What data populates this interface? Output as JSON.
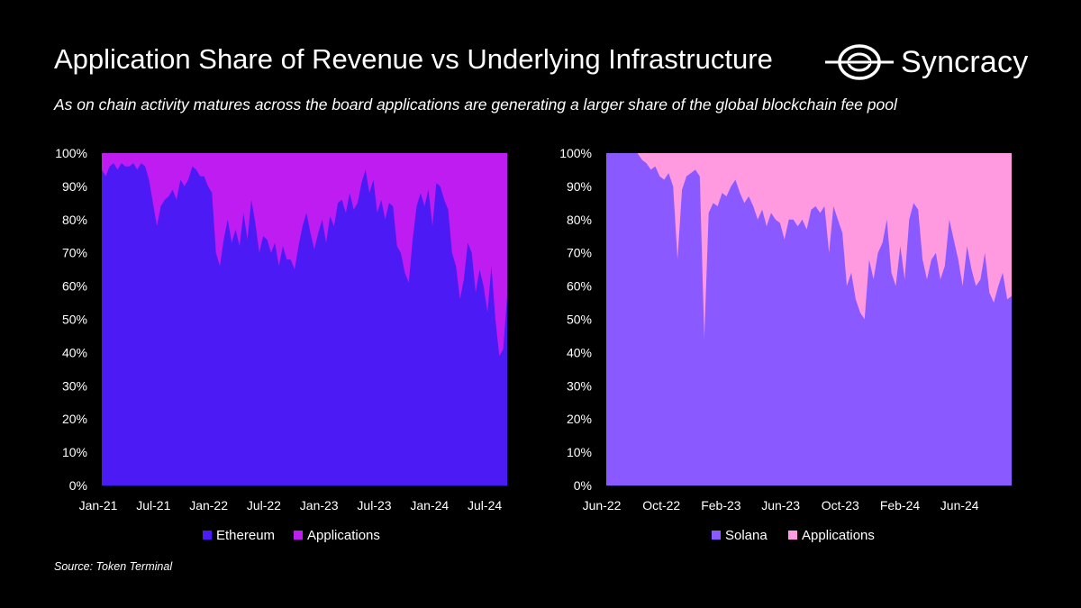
{
  "header": {
    "title": "Application Share of Revenue vs Underlying Infrastructure",
    "subtitle": "As on chain activity matures across the board applications are generating a larger share of the global blockchain fee pool",
    "brand": "Syncracy"
  },
  "footer": {
    "source": "Source: Token Terminal"
  },
  "chart_data": [
    {
      "type": "area",
      "stacked": true,
      "normalized": "percent",
      "yticks": [
        "0%",
        "10%",
        "20%",
        "30%",
        "40%",
        "50%",
        "60%",
        "70%",
        "80%",
        "90%",
        "100%"
      ],
      "ylim": [
        0,
        100
      ],
      "xticks": [
        "Jan-21",
        "Jul-21",
        "Jan-22",
        "Jul-22",
        "Jan-23",
        "Jul-23",
        "Jan-24",
        "Jul-24"
      ],
      "x_start": "2021-01",
      "x_end": "2024-10",
      "legend_position": "bottom",
      "series": [
        {
          "name": "Ethereum",
          "color": "#4c1af5",
          "values": [
            95,
            93,
            96,
            97,
            95,
            97,
            96,
            96,
            97,
            95,
            97,
            96,
            92,
            85,
            78,
            84,
            86,
            87,
            89,
            86,
            92,
            90,
            92,
            96,
            95,
            93,
            93,
            90,
            88,
            70,
            66,
            74,
            80,
            73,
            77,
            72,
            82,
            74,
            86,
            79,
            70,
            75,
            74,
            70,
            73,
            66,
            72,
            68,
            68,
            65,
            72,
            78,
            82,
            76,
            71,
            76,
            80,
            73,
            81,
            78,
            85,
            86,
            82,
            88,
            83,
            85,
            91,
            95,
            88,
            92,
            82,
            86,
            80,
            85,
            84,
            72,
            70,
            64,
            61,
            74,
            84,
            88,
            84,
            89,
            78,
            91,
            90,
            86,
            83,
            70,
            66,
            56,
            62,
            73,
            70,
            58,
            65,
            60,
            52,
            66,
            50,
            39,
            41,
            57
          ]
        },
        {
          "name": "Applications",
          "color": "#be1cf0",
          "values": [
            5,
            7,
            4,
            3,
            5,
            3,
            4,
            4,
            3,
            5,
            3,
            4,
            8,
            15,
            22,
            16,
            14,
            13,
            11,
            14,
            8,
            10,
            8,
            4,
            5,
            7,
            7,
            10,
            12,
            30,
            34,
            26,
            20,
            27,
            23,
            28,
            18,
            26,
            14,
            21,
            30,
            25,
            26,
            30,
            27,
            34,
            28,
            32,
            32,
            35,
            28,
            22,
            18,
            24,
            29,
            24,
            20,
            27,
            19,
            22,
            15,
            14,
            18,
            12,
            17,
            15,
            9,
            5,
            12,
            8,
            18,
            14,
            20,
            15,
            16,
            28,
            30,
            36,
            39,
            26,
            16,
            12,
            16,
            11,
            22,
            9,
            10,
            14,
            17,
            30,
            34,
            44,
            38,
            27,
            30,
            42,
            35,
            40,
            48,
            34,
            50,
            61,
            59,
            43
          ]
        }
      ]
    },
    {
      "type": "area",
      "stacked": true,
      "normalized": "percent",
      "yticks": [
        "0%",
        "10%",
        "20%",
        "30%",
        "40%",
        "50%",
        "60%",
        "70%",
        "80%",
        "90%",
        "100%"
      ],
      "ylim": [
        0,
        100
      ],
      "xticks": [
        "Jun-22",
        "Oct-22",
        "Feb-23",
        "Jun-23",
        "Oct-23",
        "Feb-24",
        "Jun-24"
      ],
      "x_start": "2022-06",
      "x_end": "2024-10",
      "legend_position": "bottom",
      "series": [
        {
          "name": "Solana",
          "color": "#8a59ff",
          "values": [
            100,
            100,
            100,
            100,
            100,
            100,
            100,
            100,
            98,
            97,
            95,
            96,
            93,
            92,
            94,
            90,
            68,
            89,
            93,
            94,
            95,
            93,
            44,
            82,
            85,
            84,
            88,
            87,
            90,
            92,
            88,
            85,
            87,
            84,
            80,
            83,
            78,
            82,
            80,
            79,
            74,
            80,
            80,
            78,
            80,
            77,
            83,
            84,
            82,
            84,
            70,
            84,
            80,
            76,
            60,
            64,
            56,
            52,
            50,
            68,
            62,
            70,
            73,
            80,
            64,
            60,
            72,
            62,
            80,
            85,
            83,
            68,
            62,
            68,
            70,
            62,
            66,
            80,
            74,
            68,
            60,
            72,
            65,
            60,
            62,
            70,
            58,
            55,
            60,
            64,
            56,
            57
          ]
        },
        {
          "name": "Applications",
          "color": "#ff99e0",
          "values": [
            0,
            0,
            0,
            0,
            0,
            0,
            0,
            0,
            2,
            3,
            5,
            4,
            7,
            8,
            6,
            10,
            32,
            11,
            7,
            6,
            5,
            7,
            56,
            18,
            15,
            16,
            12,
            13,
            10,
            8,
            12,
            15,
            13,
            16,
            20,
            17,
            22,
            18,
            20,
            21,
            26,
            20,
            20,
            22,
            20,
            23,
            17,
            16,
            18,
            16,
            30,
            16,
            20,
            24,
            40,
            36,
            44,
            48,
            50,
            32,
            38,
            30,
            27,
            20,
            36,
            40,
            28,
            38,
            20,
            15,
            17,
            32,
            38,
            32,
            30,
            38,
            34,
            20,
            26,
            32,
            40,
            28,
            35,
            40,
            38,
            30,
            42,
            45,
            40,
            36,
            44,
            43
          ]
        }
      ]
    }
  ]
}
